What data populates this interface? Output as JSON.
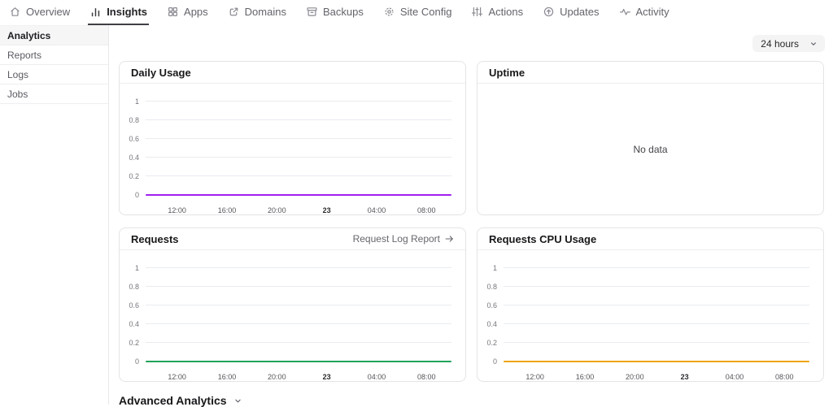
{
  "nav": {
    "items": [
      {
        "label": "Overview",
        "icon": "home-icon",
        "active": false
      },
      {
        "label": "Insights",
        "icon": "bar-chart-icon",
        "active": true
      },
      {
        "label": "Apps",
        "icon": "grid-icon",
        "active": false
      },
      {
        "label": "Domains",
        "icon": "external-link-icon",
        "active": false
      },
      {
        "label": "Backups",
        "icon": "archive-icon",
        "active": false
      },
      {
        "label": "Site Config",
        "icon": "gear-icon",
        "active": false
      },
      {
        "label": "Actions",
        "icon": "sliders-icon",
        "active": false
      },
      {
        "label": "Updates",
        "icon": "arrow-up-circle-icon",
        "active": false
      },
      {
        "label": "Activity",
        "icon": "pulse-icon",
        "active": false
      }
    ]
  },
  "sidebar": {
    "items": [
      {
        "label": "Analytics",
        "active": true
      },
      {
        "label": "Reports",
        "active": false
      },
      {
        "label": "Logs",
        "active": false
      },
      {
        "label": "Jobs",
        "active": false
      }
    ]
  },
  "toolbar": {
    "time_range": {
      "value": "24 hours",
      "icon": "chevron-down-icon"
    }
  },
  "panels": {
    "daily_usage": {
      "title": "Daily Usage"
    },
    "uptime": {
      "title": "Uptime",
      "empty_message": "No data"
    },
    "requests": {
      "title": "Requests",
      "link_label": "Request Log Report",
      "link_icon": "arrow-right-icon"
    },
    "requests_cpu": {
      "title": "Requests CPU Usage"
    }
  },
  "advanced": {
    "label": "Advanced Analytics",
    "icon": "chevron-down-icon"
  },
  "chart_data": [
    {
      "type": "line",
      "title": "Daily Usage",
      "x_ticks": [
        "12:00",
        "16:00",
        "20:00",
        "23",
        "04:00",
        "08:00"
      ],
      "bold_x_tick": "23",
      "y_ticks": [
        "1",
        "0.8",
        "0.6",
        "0.4",
        "0.2",
        "0"
      ],
      "ylim": [
        0,
        1
      ],
      "grid": true,
      "legend": "none",
      "series": [
        {
          "name": "Daily Usage",
          "color": "#A020F0",
          "values": [
            0,
            0,
            0,
            0,
            0,
            0
          ]
        }
      ]
    },
    {
      "type": "empty",
      "title": "Uptime",
      "message": "No data"
    },
    {
      "type": "line",
      "title": "Requests",
      "x_ticks": [
        "12:00",
        "16:00",
        "20:00",
        "23",
        "04:00",
        "08:00"
      ],
      "bold_x_tick": "23",
      "y_ticks": [
        "1",
        "0.8",
        "0.6",
        "0.4",
        "0.2",
        "0"
      ],
      "ylim": [
        0,
        1
      ],
      "grid": true,
      "legend": "none",
      "series": [
        {
          "name": "Requests",
          "color": "#1FA25B",
          "values": [
            0,
            0,
            0,
            0,
            0,
            0
          ]
        }
      ]
    },
    {
      "type": "line",
      "title": "Requests CPU Usage",
      "x_ticks": [
        "12:00",
        "16:00",
        "20:00",
        "23",
        "04:00",
        "08:00"
      ],
      "bold_x_tick": "23",
      "y_ticks": [
        "1",
        "0.8",
        "0.6",
        "0.4",
        "0.2",
        "0"
      ],
      "ylim": [
        0,
        1
      ],
      "grid": true,
      "legend": "none",
      "series": [
        {
          "name": "Requests CPU Usage",
          "color": "#F0A30A",
          "values": [
            0,
            0,
            0,
            0,
            0,
            0
          ]
        }
      ]
    }
  ],
  "colors": {
    "active_tab_underline": "#3F3F46",
    "panel_border": "#E4E4E7",
    "gridline": "#E9EBF0",
    "daily_usage_line": "#A020F0",
    "requests_line": "#1FA25B",
    "requests_cpu_line": "#F0A30A",
    "time_range_bg": "#F4F4F5"
  }
}
